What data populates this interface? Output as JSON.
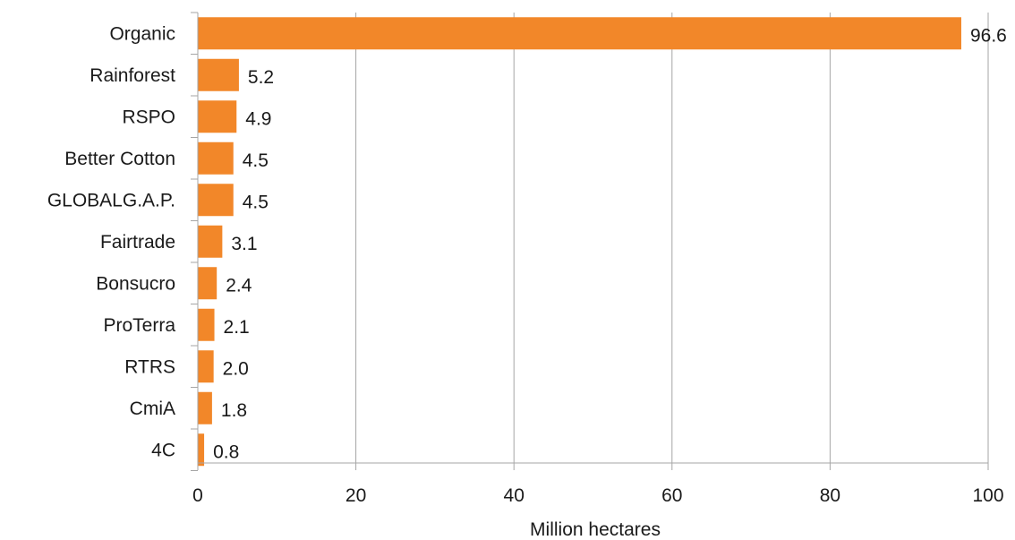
{
  "chart_data": {
    "type": "bar",
    "orientation": "horizontal",
    "categories": [
      "Organic",
      "Rainforest",
      "RSPO",
      "Better Cotton",
      "GLOBALG.A.P.",
      "Fairtrade",
      "Bonsucro",
      "ProTerra",
      "RTRS",
      "CmiA",
      "4C"
    ],
    "values": [
      96.6,
      5.2,
      4.9,
      4.5,
      4.5,
      3.1,
      2.4,
      2.1,
      2.0,
      1.8,
      0.8
    ],
    "value_labels": [
      "96.6",
      "5.2",
      "4.9",
      "4.5",
      "4.5",
      "3.1",
      "2.4",
      "2.1",
      "2.0",
      "1.8",
      "0.8"
    ],
    "xlabel": "Million hectares",
    "ylabel": "",
    "xlim": [
      0,
      100
    ],
    "xticks": [
      0,
      20,
      40,
      60,
      80,
      100
    ],
    "xtick_labels": [
      "0",
      "20",
      "40",
      "60",
      "80",
      "100"
    ],
    "grid": "vertical",
    "legend": "none",
    "bar_color": "#F28729",
    "grid_color": "#a6a6a6"
  }
}
